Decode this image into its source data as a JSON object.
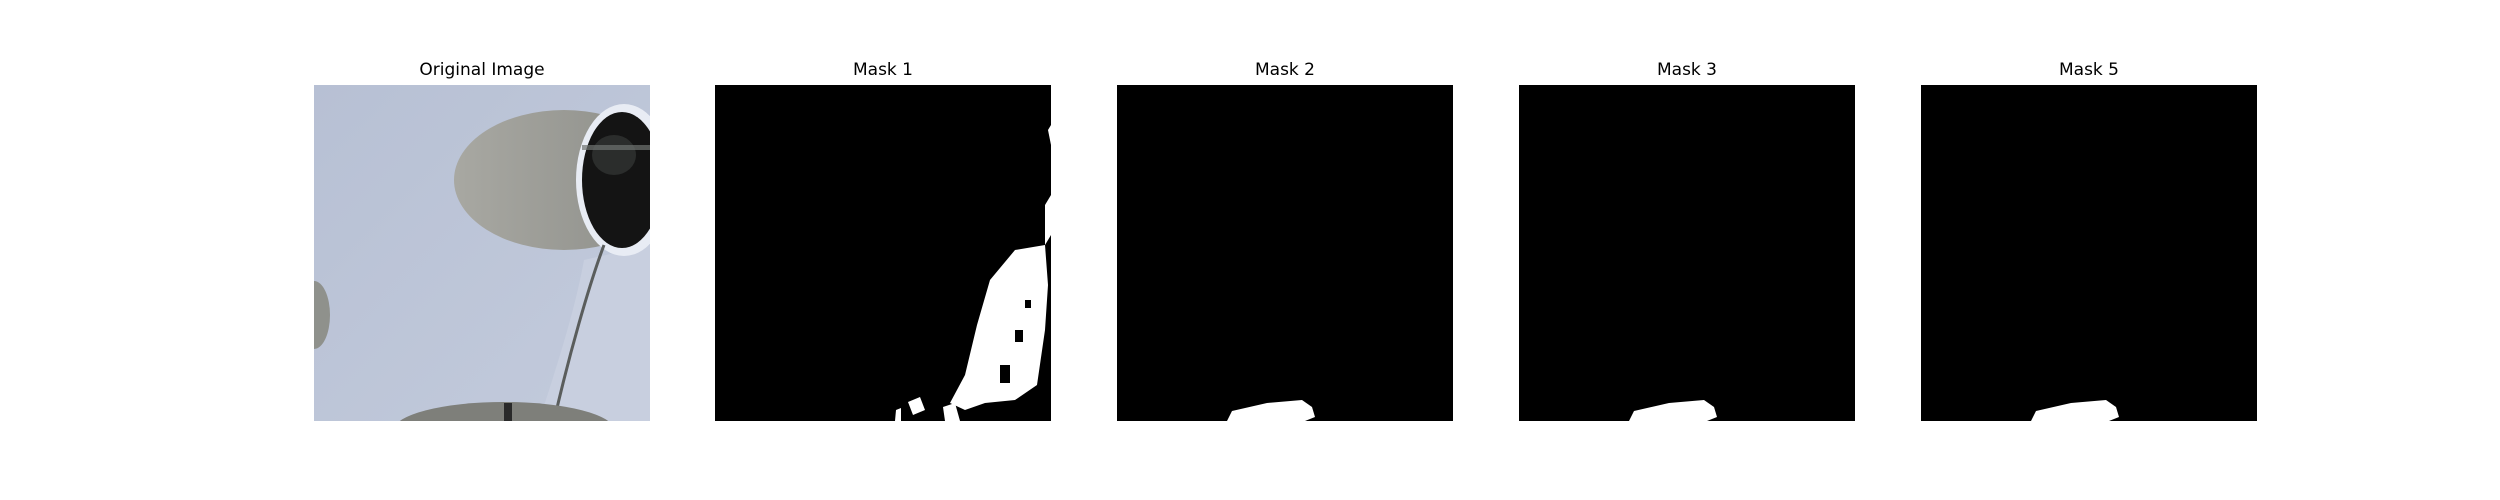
{
  "figure": {
    "panels": [
      {
        "title": "Original Image",
        "kind": "photo"
      },
      {
        "title": "Mask 1",
        "kind": "mask"
      },
      {
        "title": "Mask 2",
        "kind": "mask"
      },
      {
        "title": "Mask 3",
        "kind": "mask"
      },
      {
        "title": "Mask 5",
        "kind": "mask"
      }
    ],
    "colors": {
      "background": "#ffffff",
      "mask_background": "#000000",
      "mask_foreground": "#ffffff",
      "photo_sky": "#b9c2d6",
      "photo_shadow": "#9a9b95",
      "photo_dark": "#1a1a1a"
    }
  }
}
